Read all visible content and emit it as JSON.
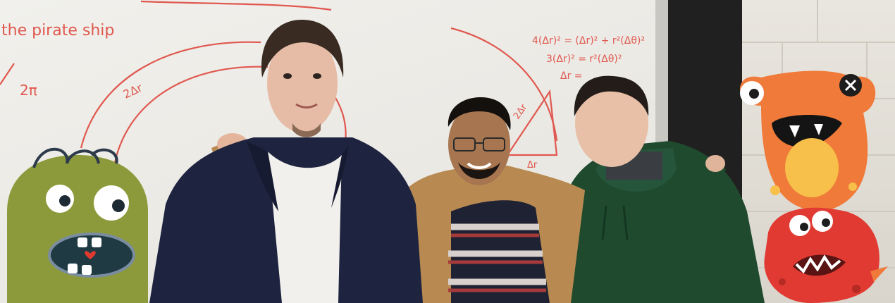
{
  "scene": {
    "whiteboard": {
      "heading": "the pirate ship",
      "notes": [
        "2π",
        "2Δr",
        "4(Δr)² = (Δr)² + r²(Δθ)²",
        "3(Δr)² = r²(Δθ)²",
        "Δr = ",
        "2Δr",
        "Δr"
      ],
      "ink_color": "#e0584f"
    },
    "people": [
      {
        "name": "person-left",
        "clothing": "navy jacket, white t-shirt"
      },
      {
        "name": "person-center",
        "clothing": "tan jacket, striped sweater, glasses"
      },
      {
        "name": "person-right",
        "clothing": "green hoodie"
      }
    ],
    "stickers": [
      {
        "name": "green-monster-sticker",
        "color": "#8d9a3c"
      },
      {
        "name": "orange-monster-sticker",
        "color": "#f07a3a"
      },
      {
        "name": "red-monster-sticker",
        "color": "#e03a32"
      }
    ]
  }
}
